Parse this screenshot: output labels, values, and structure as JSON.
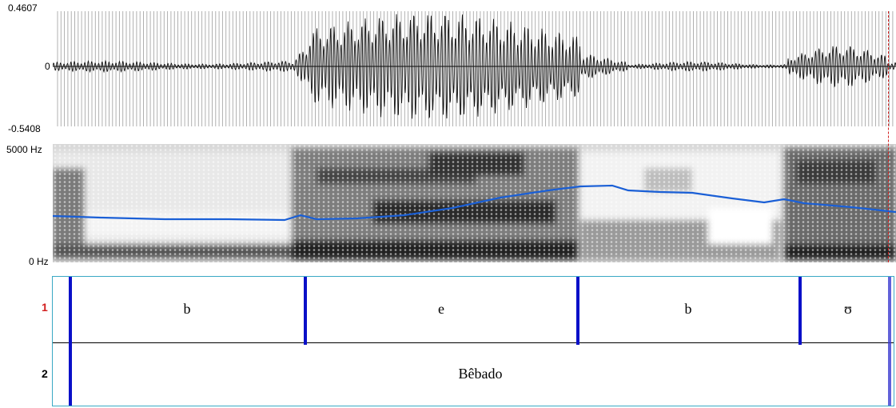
{
  "waveform": {
    "y_max_label": "0.4607",
    "zero_label": "0",
    "y_min_label": "-0.5408",
    "axis_color": "#000000",
    "pulse_color": "#9a9a9a"
  },
  "spectrogram": {
    "top_label": "5000 Hz",
    "bottom_label": "0 Hz",
    "pitch_color": "#1a5fd6"
  },
  "textgrid": {
    "border_color": "#3aa9c4",
    "boundary_color": "#0a10c8",
    "tier1": {
      "number": "1",
      "number_color": "#d21e1e",
      "segments": [
        "b",
        "e",
        "b",
        "ʊ"
      ]
    },
    "tier2": {
      "number": "2",
      "number_color": "#000000",
      "segments": [
        "Bêbado"
      ]
    }
  },
  "cursor_color": "#d21e1e"
}
